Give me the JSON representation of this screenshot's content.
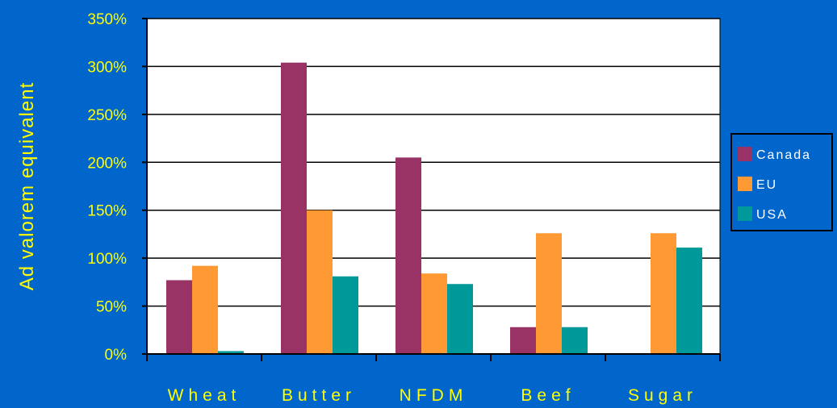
{
  "chart_data": {
    "type": "bar",
    "title": "",
    "xlabel": "",
    "ylabel": "Ad valorem equivalent",
    "ylim": [
      0,
      350
    ],
    "yticks": [
      0,
      50,
      100,
      150,
      200,
      250,
      300,
      350
    ],
    "ytick_labels": [
      "0%",
      "50%",
      "100%",
      "150%",
      "200%",
      "250%",
      "300%",
      "350%"
    ],
    "categories": [
      "Wheat",
      "Butter",
      "NFDM",
      "Beef",
      "Sugar"
    ],
    "series": [
      {
        "name": "Canada",
        "color": "#993366",
        "values": [
          77,
          304,
          205,
          28,
          0
        ]
      },
      {
        "name": "EU",
        "color": "#ff9933",
        "values": [
          92,
          150,
          84,
          126,
          126
        ]
      },
      {
        "name": "USA",
        "color": "#009999",
        "values": [
          3,
          81,
          73,
          28,
          111
        ]
      }
    ],
    "grid": true,
    "legend_position": "right"
  },
  "colors": {
    "background": "#0066cc",
    "plot_area": "#ffffff",
    "text": "#ffff00"
  }
}
